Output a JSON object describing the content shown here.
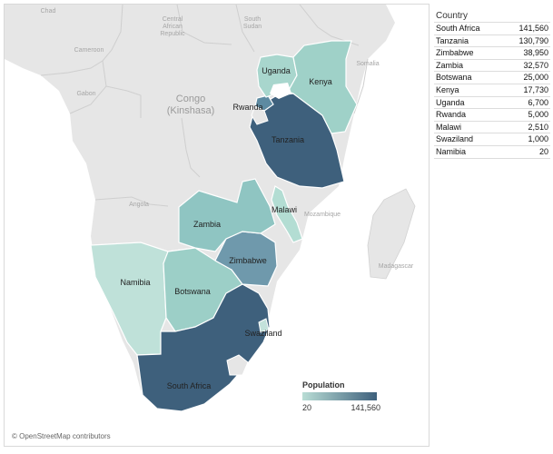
{
  "map": {
    "labels": {
      "chad": "Chad",
      "car1": "Central",
      "car2": "African",
      "car3": "Republic",
      "south1": "South",
      "south2": "Sudan",
      "cameroon": "Cameroon",
      "gabon": "Gabon",
      "congo1": "Congo",
      "congo2": "(Kinshasa)",
      "somalia": "Somalia",
      "angola": "Angola",
      "mozambique": "Mozambique",
      "madagascar": "Madagascar"
    },
    "attribution": "© OpenStreetMap contributors"
  },
  "legend": {
    "title": "Population",
    "min": "20",
    "max": "141,560",
    "color_low": "#b9ddd5",
    "color_high": "#3e607c"
  },
  "table": {
    "header": "Country",
    "rows": [
      {
        "country": "South Africa",
        "value": "141,560"
      },
      {
        "country": "Tanzania",
        "value": "130,790"
      },
      {
        "country": "Zimbabwe",
        "value": "38,950"
      },
      {
        "country": "Zambia",
        "value": "32,570"
      },
      {
        "country": "Botswana",
        "value": "25,000"
      },
      {
        "country": "Kenya",
        "value": "17,730"
      },
      {
        "country": "Uganda",
        "value": "6,700"
      },
      {
        "country": "Rwanda",
        "value": "5,000"
      },
      {
        "country": "Malawi",
        "value": "2,510"
      },
      {
        "country": "Swaziland",
        "value": "1,000"
      },
      {
        "country": "Namibia",
        "value": "20"
      }
    ]
  },
  "chart_data": {
    "type": "choropleth",
    "measure": "Population",
    "color_range": [
      20,
      141560
    ],
    "regions": [
      {
        "name": "South Africa",
        "value": 141560
      },
      {
        "name": "Tanzania",
        "value": 130790
      },
      {
        "name": "Zimbabwe",
        "value": 38950
      },
      {
        "name": "Zambia",
        "value": 32570
      },
      {
        "name": "Botswana",
        "value": 25000
      },
      {
        "name": "Kenya",
        "value": 17730
      },
      {
        "name": "Uganda",
        "value": 6700
      },
      {
        "name": "Rwanda",
        "value": 5000
      },
      {
        "name": "Malawi",
        "value": 2510
      },
      {
        "name": "Swaziland",
        "value": 1000
      },
      {
        "name": "Namibia",
        "value": 20
      }
    ]
  }
}
